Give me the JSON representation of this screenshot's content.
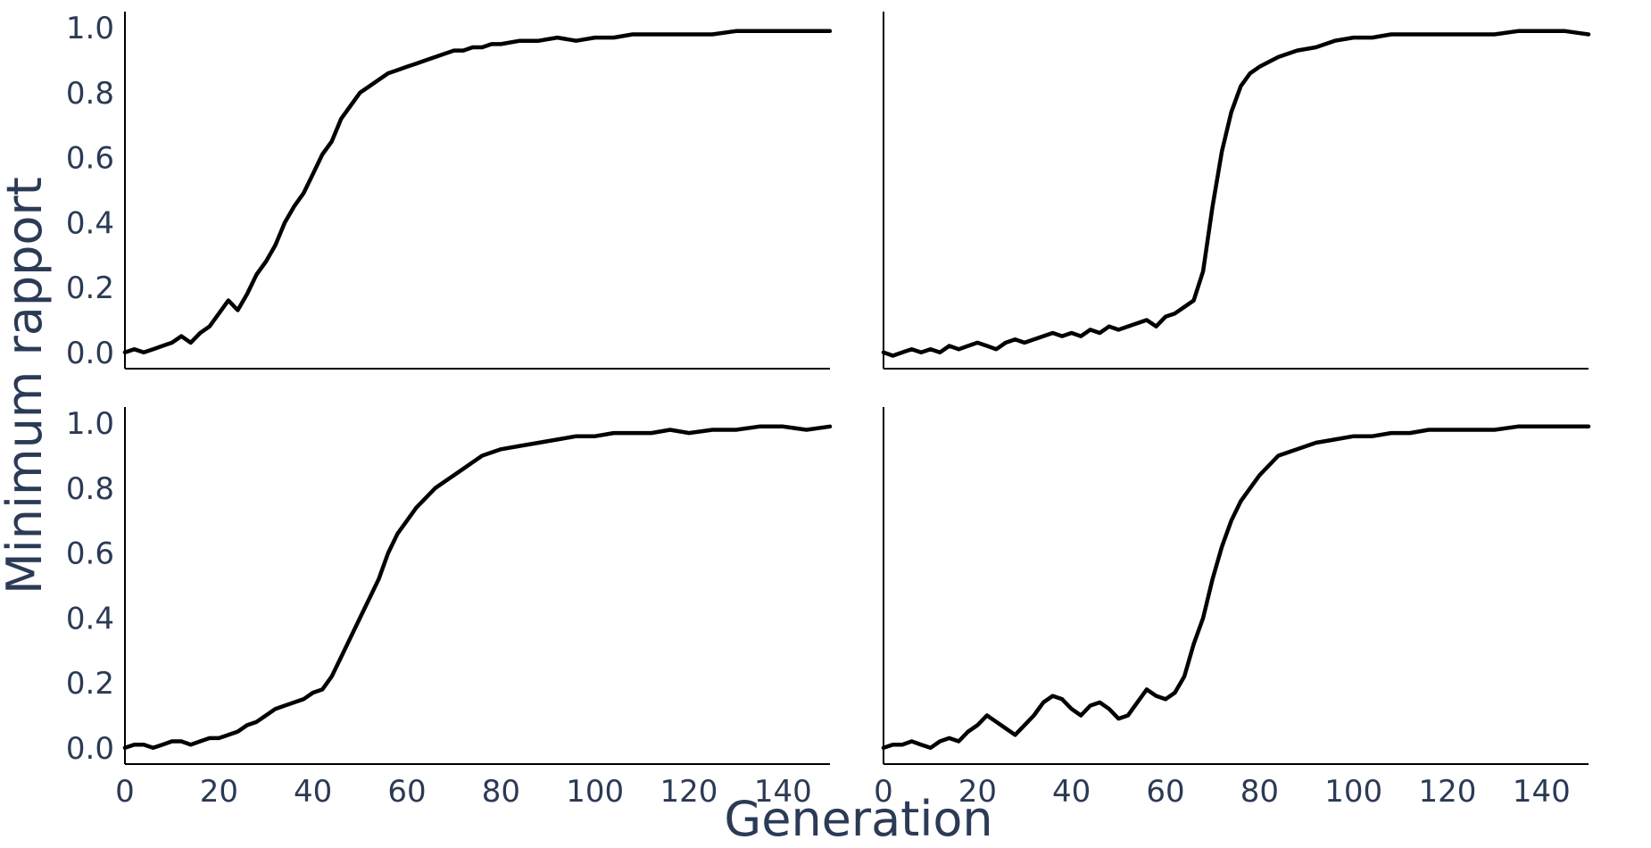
{
  "chart_data": {
    "type": "line",
    "layout": "2x2 small multiples, shared x and y axes",
    "xlabel": "Generation",
    "ylabel": "Minimum rapport",
    "xlim": [
      0,
      150
    ],
    "ylim": [
      -0.05,
      1.05
    ],
    "xticks": [
      "0",
      "20",
      "40",
      "60",
      "80",
      "100",
      "120",
      "140"
    ],
    "xtick_values": [
      0,
      20,
      40,
      60,
      80,
      100,
      120,
      140
    ],
    "yticks": [
      "0.0",
      "0.2",
      "0.4",
      "0.6",
      "0.8",
      "1.0"
    ],
    "ytick_values": [
      0.0,
      0.2,
      0.4,
      0.6,
      0.8,
      1.0
    ],
    "grid": false,
    "line_color": "#000000",
    "text_color": "#2b3a55",
    "panels": [
      {
        "position": "top-left",
        "x": [
          0,
          2,
          4,
          6,
          8,
          10,
          12,
          14,
          16,
          18,
          20,
          22,
          24,
          26,
          28,
          30,
          32,
          34,
          36,
          38,
          40,
          42,
          44,
          46,
          48,
          50,
          52,
          54,
          56,
          58,
          60,
          62,
          64,
          66,
          68,
          70,
          72,
          74,
          76,
          78,
          80,
          84,
          88,
          92,
          96,
          100,
          104,
          108,
          112,
          116,
          120,
          125,
          130,
          135,
          140,
          145,
          150
        ],
        "y": [
          0.0,
          0.01,
          0.0,
          0.01,
          0.02,
          0.03,
          0.05,
          0.03,
          0.06,
          0.08,
          0.12,
          0.16,
          0.13,
          0.18,
          0.24,
          0.28,
          0.33,
          0.4,
          0.45,
          0.49,
          0.55,
          0.61,
          0.65,
          0.72,
          0.76,
          0.8,
          0.82,
          0.84,
          0.86,
          0.87,
          0.88,
          0.89,
          0.9,
          0.91,
          0.92,
          0.93,
          0.93,
          0.94,
          0.94,
          0.95,
          0.95,
          0.96,
          0.96,
          0.97,
          0.96,
          0.97,
          0.97,
          0.98,
          0.98,
          0.98,
          0.98,
          0.98,
          0.99,
          0.99,
          0.99,
          0.99,
          0.99
        ]
      },
      {
        "position": "top-right",
        "x": [
          0,
          2,
          4,
          6,
          8,
          10,
          12,
          14,
          16,
          18,
          20,
          22,
          24,
          26,
          28,
          30,
          32,
          34,
          36,
          38,
          40,
          42,
          44,
          46,
          48,
          50,
          52,
          54,
          56,
          58,
          60,
          62,
          64,
          66,
          68,
          70,
          72,
          74,
          76,
          78,
          80,
          84,
          88,
          92,
          96,
          100,
          104,
          108,
          112,
          116,
          120,
          125,
          130,
          135,
          140,
          145,
          150
        ],
        "y": [
          0.0,
          -0.01,
          0.0,
          0.01,
          0.0,
          0.01,
          0.0,
          0.02,
          0.01,
          0.02,
          0.03,
          0.02,
          0.01,
          0.03,
          0.04,
          0.03,
          0.04,
          0.05,
          0.06,
          0.05,
          0.06,
          0.05,
          0.07,
          0.06,
          0.08,
          0.07,
          0.08,
          0.09,
          0.1,
          0.08,
          0.11,
          0.12,
          0.14,
          0.16,
          0.25,
          0.45,
          0.62,
          0.74,
          0.82,
          0.86,
          0.88,
          0.91,
          0.93,
          0.94,
          0.96,
          0.97,
          0.97,
          0.98,
          0.98,
          0.98,
          0.98,
          0.98,
          0.98,
          0.99,
          0.99,
          0.99,
          0.98
        ]
      },
      {
        "position": "bottom-left",
        "x": [
          0,
          2,
          4,
          6,
          8,
          10,
          12,
          14,
          16,
          18,
          20,
          22,
          24,
          26,
          28,
          30,
          32,
          34,
          36,
          38,
          40,
          42,
          44,
          46,
          48,
          50,
          52,
          54,
          56,
          58,
          60,
          62,
          64,
          66,
          68,
          70,
          72,
          74,
          76,
          78,
          80,
          84,
          88,
          92,
          96,
          100,
          104,
          108,
          112,
          116,
          120,
          125,
          130,
          135,
          140,
          145,
          150
        ],
        "y": [
          0.0,
          0.01,
          0.01,
          0.0,
          0.01,
          0.02,
          0.02,
          0.01,
          0.02,
          0.03,
          0.03,
          0.04,
          0.05,
          0.07,
          0.08,
          0.1,
          0.12,
          0.13,
          0.14,
          0.15,
          0.17,
          0.18,
          0.22,
          0.28,
          0.34,
          0.4,
          0.46,
          0.52,
          0.6,
          0.66,
          0.7,
          0.74,
          0.77,
          0.8,
          0.82,
          0.84,
          0.86,
          0.88,
          0.9,
          0.91,
          0.92,
          0.93,
          0.94,
          0.95,
          0.96,
          0.96,
          0.97,
          0.97,
          0.97,
          0.98,
          0.97,
          0.98,
          0.98,
          0.99,
          0.99,
          0.98,
          0.99
        ]
      },
      {
        "position": "bottom-right",
        "x": [
          0,
          2,
          4,
          6,
          8,
          10,
          12,
          14,
          16,
          18,
          20,
          22,
          24,
          26,
          28,
          30,
          32,
          34,
          36,
          38,
          40,
          42,
          44,
          46,
          48,
          50,
          52,
          54,
          56,
          58,
          60,
          62,
          64,
          66,
          68,
          70,
          72,
          74,
          76,
          78,
          80,
          84,
          88,
          92,
          96,
          100,
          104,
          108,
          112,
          116,
          120,
          125,
          130,
          135,
          140,
          145,
          150
        ],
        "y": [
          0.0,
          0.01,
          0.01,
          0.02,
          0.01,
          0.0,
          0.02,
          0.03,
          0.02,
          0.05,
          0.07,
          0.1,
          0.08,
          0.06,
          0.04,
          0.07,
          0.1,
          0.14,
          0.16,
          0.15,
          0.12,
          0.1,
          0.13,
          0.14,
          0.12,
          0.09,
          0.1,
          0.14,
          0.18,
          0.16,
          0.15,
          0.17,
          0.22,
          0.32,
          0.4,
          0.52,
          0.62,
          0.7,
          0.76,
          0.8,
          0.84,
          0.9,
          0.92,
          0.94,
          0.95,
          0.96,
          0.96,
          0.97,
          0.97,
          0.98,
          0.98,
          0.98,
          0.98,
          0.99,
          0.99,
          0.99,
          0.99
        ]
      }
    ]
  }
}
